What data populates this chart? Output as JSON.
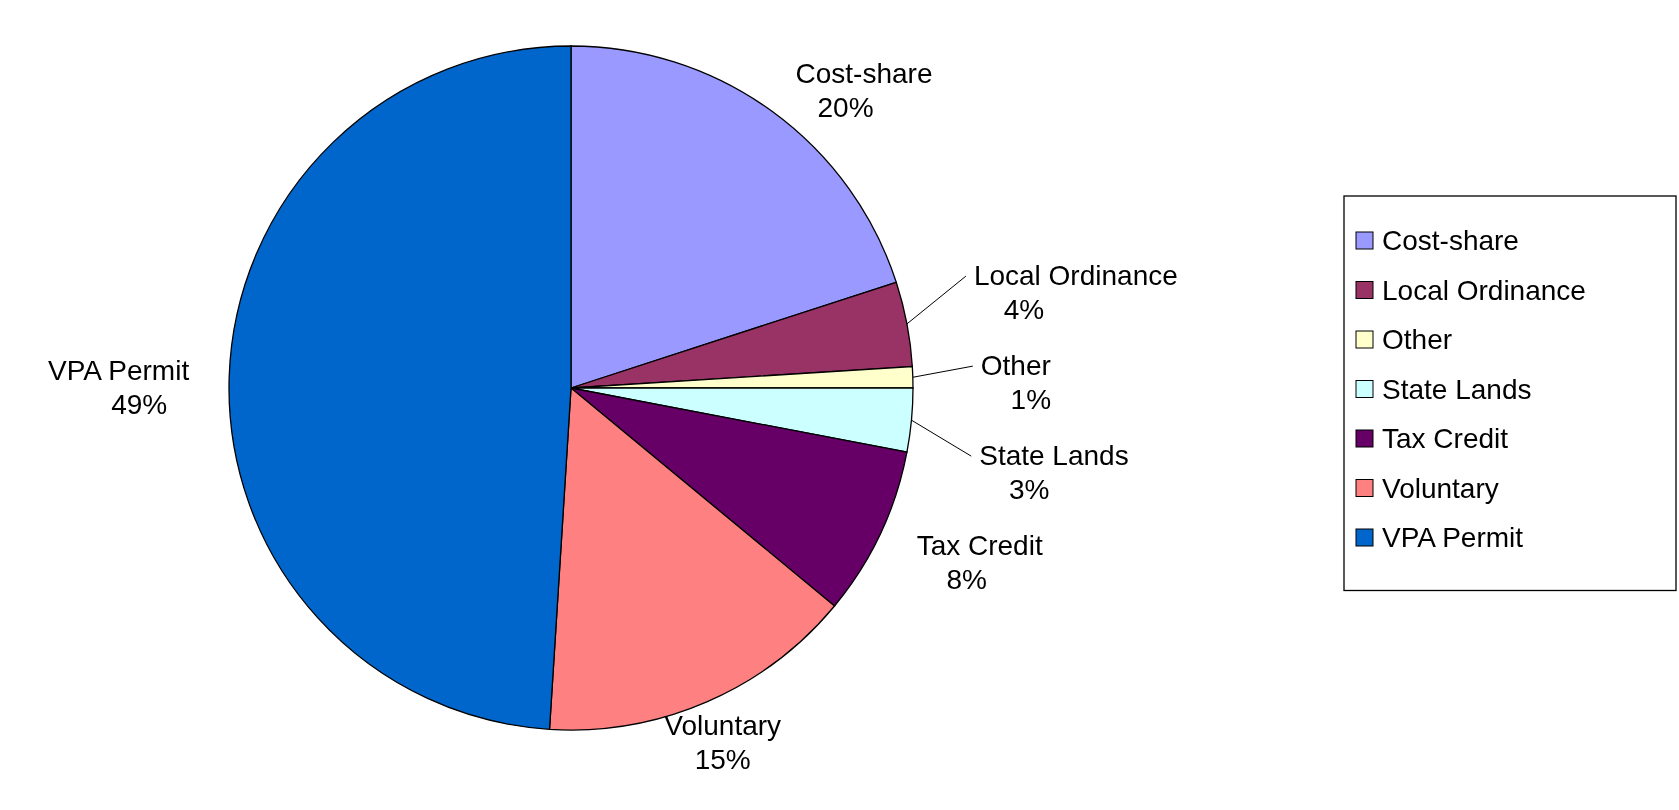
{
  "chart_data": {
    "type": "pie",
    "categories": [
      "Cost-share",
      "Local Ordinance",
      "Other",
      "State Lands",
      "Tax Credit",
      "Voluntary",
      "VPA Permit"
    ],
    "values": [
      20,
      4,
      1,
      3,
      8,
      15,
      49
    ],
    "value_labels": [
      "20%",
      "4%",
      "1%",
      "3%",
      "8%",
      "15%",
      "49%"
    ],
    "colors": [
      "#9999ff",
      "#993366",
      "#ffffcc",
      "#ccffff",
      "#660066",
      "#ff8080",
      "#0066cc"
    ],
    "legend": "right"
  }
}
